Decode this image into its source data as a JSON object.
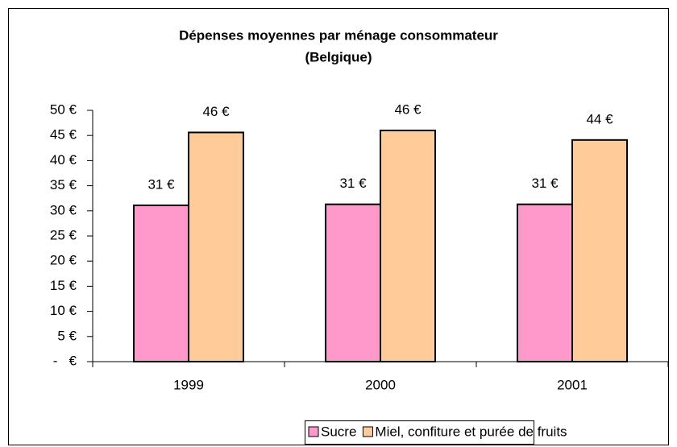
{
  "chart_data": {
    "type": "bar",
    "title": "Dépenses moyennes par ménage consommateur",
    "subtitle": "(Belgique)",
    "categories": [
      "1999",
      "2000",
      "2001"
    ],
    "series": [
      {
        "name": "Sucre",
        "color": "#ff99cc",
        "values": [
          31.1,
          31.3,
          31.3
        ],
        "value_labels": [
          "31 €",
          "31 €",
          "31 €"
        ]
      },
      {
        "name": "Miel, confiture et purée de fruits",
        "color": "#ffcc99",
        "values": [
          45.6,
          46.0,
          44.1
        ],
        "value_labels": [
          "46 €",
          "46 €",
          "44 €"
        ]
      }
    ],
    "ylim": [
      0,
      50
    ],
    "yticks": [
      {
        "value": 0,
        "label": "-   €"
      },
      {
        "value": 5,
        "label": "5 €"
      },
      {
        "value": 10,
        "label": "10 €"
      },
      {
        "value": 15,
        "label": "15 €"
      },
      {
        "value": 20,
        "label": "20 €"
      },
      {
        "value": 25,
        "label": "25 €"
      },
      {
        "value": 30,
        "label": "30 €"
      },
      {
        "value": 35,
        "label": "35 €"
      },
      {
        "value": 40,
        "label": "40 €"
      },
      {
        "value": 45,
        "label": "45 €"
      },
      {
        "value": 50,
        "label": "50 €"
      }
    ],
    "legend": "bottom"
  }
}
